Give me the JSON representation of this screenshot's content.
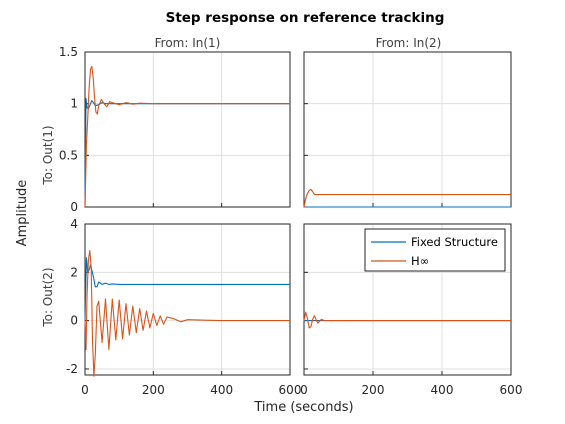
{
  "chart_data": {
    "type": "line",
    "title": "Step response on reference tracking",
    "xlabel": "Time (seconds)",
    "ylabel": "Amplitude",
    "column_titles": [
      "From: In(1)",
      "From: In(2)"
    ],
    "row_titles": [
      "To: Out(1)",
      "To: Out(2)"
    ],
    "grid": true,
    "legend_position": "top-right of bottom-right panel",
    "xlim": [
      0,
      600
    ],
    "x_ticks": [
      "0",
      "200",
      "400",
      "600"
    ],
    "rows": [
      {
        "ylim": [
          0,
          1.5
        ],
        "y_ticks": [
          "0",
          "0.5",
          "1",
          "1.5"
        ]
      },
      {
        "ylim": [
          -2.25,
          4
        ],
        "y_ticks": [
          "-2",
          "0",
          "2",
          "4"
        ]
      }
    ],
    "legend": [
      "Fixed Structure",
      "H∞"
    ],
    "series_colors": {
      "Fixed Structure": "#0072bd",
      "Hinf": "#d95319"
    },
    "series": [
      {
        "name": "Fixed Structure",
        "panel": "Out(1)<-In(1)",
        "x": [
          0,
          3,
          6,
          10,
          15,
          20,
          25,
          30,
          40,
          50,
          60,
          80,
          100,
          150,
          200,
          600
        ],
        "y": [
          0,
          1.05,
          0.96,
          0.95,
          0.99,
          1.03,
          1.01,
          0.98,
          0.99,
          1.01,
          1.0,
          1.0,
          1.0,
          1.0,
          1.0,
          1.0
        ]
      },
      {
        "name": "H∞",
        "panel": "Out(1)<-In(1)",
        "x": [
          0,
          4,
          8,
          12,
          16,
          20,
          24,
          28,
          32,
          36,
          40,
          48,
          56,
          64,
          72,
          80,
          100,
          120,
          140,
          160,
          200,
          260,
          350,
          600
        ],
        "y": [
          0,
          0.6,
          0.85,
          1.15,
          1.33,
          1.36,
          1.25,
          1.05,
          0.92,
          0.9,
          0.98,
          1.04,
          1.0,
          0.97,
          1.02,
          1.01,
          0.99,
          1.01,
          0.995,
          1.005,
          1.0,
          1.0,
          1.0,
          1.0
        ]
      },
      {
        "name": "Fixed Structure",
        "panel": "Out(1)<-In(2)",
        "x": [
          0,
          600
        ],
        "y": [
          0,
          0
        ]
      },
      {
        "name": "H∞",
        "panel": "Out(1)<-In(2)",
        "x": [
          0,
          5,
          10,
          15,
          20,
          25,
          30,
          40,
          60,
          100,
          600
        ],
        "y": [
          0,
          0.08,
          0.13,
          0.16,
          0.17,
          0.15,
          0.12,
          0.12,
          0.12,
          0.12,
          0.12
        ]
      },
      {
        "name": "Fixed Structure",
        "panel": "Out(2)<-In(1)",
        "x": [
          0,
          4,
          8,
          12,
          16,
          20,
          25,
          30,
          35,
          40,
          50,
          60,
          70,
          80,
          100,
          150,
          200,
          600
        ],
        "y": [
          0,
          2.6,
          2.0,
          2.1,
          2.3,
          2.1,
          1.8,
          1.4,
          1.4,
          1.6,
          1.5,
          1.55,
          1.5,
          1.52,
          1.5,
          1.5,
          1.5,
          1.5
        ]
      },
      {
        "name": "H∞",
        "panel": "Out(2)<-In(1)",
        "x": [
          0,
          3,
          6,
          10,
          14,
          18,
          22,
          26,
          30,
          35,
          40,
          50,
          60,
          70,
          80,
          90,
          100,
          110,
          120,
          130,
          140,
          150,
          160,
          170,
          180,
          190,
          200,
          210,
          220,
          230,
          240,
          260,
          280,
          300,
          350,
          400,
          450,
          600
        ],
        "y": [
          0,
          -1.2,
          1.0,
          2.5,
          2.9,
          2.2,
          -0.8,
          -2.3,
          -1.4,
          0.6,
          0.8,
          -0.9,
          0.9,
          -1.2,
          0.9,
          -0.8,
          0.85,
          -0.75,
          0.7,
          -0.6,
          0.6,
          -0.5,
          0.5,
          -0.4,
          0.4,
          -0.3,
          0.3,
          -0.2,
          0.2,
          -0.15,
          0.15,
          0.08,
          -0.05,
          0.04,
          0.02,
          0.0,
          0.0,
          0.0
        ]
      },
      {
        "name": "Fixed Structure",
        "panel": "Out(2)<-In(2)",
        "x": [
          0,
          600
        ],
        "y": [
          0,
          0
        ]
      },
      {
        "name": "H∞",
        "panel": "Out(2)<-In(2)",
        "x": [
          0,
          5,
          10,
          15,
          20,
          25,
          30,
          40,
          50,
          60,
          80,
          600
        ],
        "y": [
          0,
          0.35,
          0.1,
          -0.3,
          -0.25,
          0.05,
          0.2,
          -0.1,
          0.05,
          0.0,
          0.0,
          0.0
        ]
      }
    ]
  }
}
